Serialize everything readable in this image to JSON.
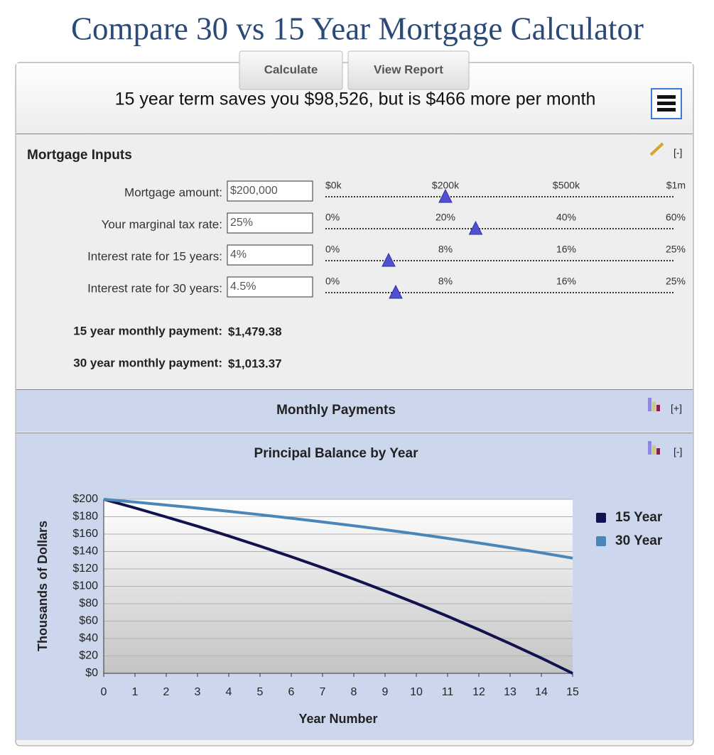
{
  "header": {
    "title": "Compare 30 vs 15 Year Mortgage Calculator"
  },
  "toolbar": {
    "buttons": [
      "Calculate",
      "View Report"
    ]
  },
  "summary": "15 year term saves you $98,526, but is $466 more per month",
  "inputs": {
    "title": "Mortgage Inputs",
    "toggle": "[-]",
    "rows": [
      {
        "label": "Mortgage amount:",
        "value": "$200,000",
        "slider": {
          "value": 200000,
          "ticks": [
            {
              "value": 0,
              "label": "$0k"
            },
            {
              "value": 200000,
              "label": "$200k"
            },
            {
              "value": 500000,
              "label": "$500k"
            },
            {
              "value": 1000000,
              "label": "$1m"
            }
          ]
        }
      },
      {
        "label": "Your marginal tax rate:",
        "value": "25%",
        "slider": {
          "value": 25,
          "ticks": [
            {
              "value": 0,
              "label": "0%"
            },
            {
              "value": 20,
              "label": "20%"
            },
            {
              "value": 40,
              "label": "40%"
            },
            {
              "value": 60,
              "label": "60%"
            }
          ]
        }
      },
      {
        "label": "Interest rate for 15 years:",
        "value": "4%",
        "slider": {
          "value": 4,
          "ticks": [
            {
              "value": 0,
              "label": "0%"
            },
            {
              "value": 8,
              "label": "8%"
            },
            {
              "value": 16,
              "label": "16%"
            },
            {
              "value": 25,
              "label": "25%"
            }
          ]
        }
      },
      {
        "label": "Interest rate for 30 years:",
        "value": "4.5%",
        "slider": {
          "value": 4.5,
          "ticks": [
            {
              "value": 0,
              "label": "0%"
            },
            {
              "value": 8,
              "label": "8%"
            },
            {
              "value": 16,
              "label": "16%"
            },
            {
              "value": 25,
              "label": "25%"
            }
          ]
        }
      }
    ],
    "results": [
      {
        "label": "15 year monthly payment:",
        "value": "$1,479.38"
      },
      {
        "label": "30 year monthly payment:",
        "value": "$1,013.37"
      }
    ]
  },
  "monthly_payments": {
    "title": "Monthly Payments",
    "toggle": "[+]"
  },
  "principal_balance": {
    "title": "Principal Balance by Year",
    "toggle": "[-]"
  },
  "chart_data": {
    "type": "line",
    "xlabel": "Year Number",
    "ylabel": "Thousands of Dollars",
    "x": [
      0,
      1,
      2,
      3,
      4,
      5,
      6,
      7,
      8,
      9,
      10,
      11,
      12,
      13,
      14,
      15
    ],
    "xlim": [
      0,
      15
    ],
    "xticks": [
      0,
      1,
      2,
      3,
      4,
      5,
      6,
      7,
      8,
      9,
      10,
      11,
      12,
      13,
      14,
      15
    ],
    "ylim": [
      0,
      200
    ],
    "yticks": [
      {
        "value": 0,
        "label": "$0"
      },
      {
        "value": 20,
        "label": "$20"
      },
      {
        "value": 40,
        "label": "$40"
      },
      {
        "value": 60,
        "label": "$60"
      },
      {
        "value": 80,
        "label": "$80"
      },
      {
        "value": 100,
        "label": "$100"
      },
      {
        "value": 120,
        "label": "$120"
      },
      {
        "value": 140,
        "label": "$140"
      },
      {
        "value": 160,
        "label": "$160"
      },
      {
        "value": 180,
        "label": "$180"
      },
      {
        "value": 200,
        "label": "$200"
      }
    ],
    "grid": true,
    "legend": "right",
    "series": [
      {
        "name": "15 Year",
        "color": "#12124f",
        "values": [
          200,
          190.1,
          179.7,
          169.0,
          157.8,
          146.1,
          134.0,
          121.4,
          108.3,
          94.6,
          80.4,
          65.6,
          50.2,
          34.1,
          17.5,
          0
        ]
      },
      {
        "name": "30 Year",
        "color": "#4a86b8",
        "values": [
          200,
          196.8,
          193.4,
          189.9,
          186.2,
          182.3,
          178.3,
          174.0,
          169.6,
          165.0,
          160.2,
          155.1,
          149.8,
          144.3,
          138.5,
          132.4
        ]
      }
    ]
  }
}
